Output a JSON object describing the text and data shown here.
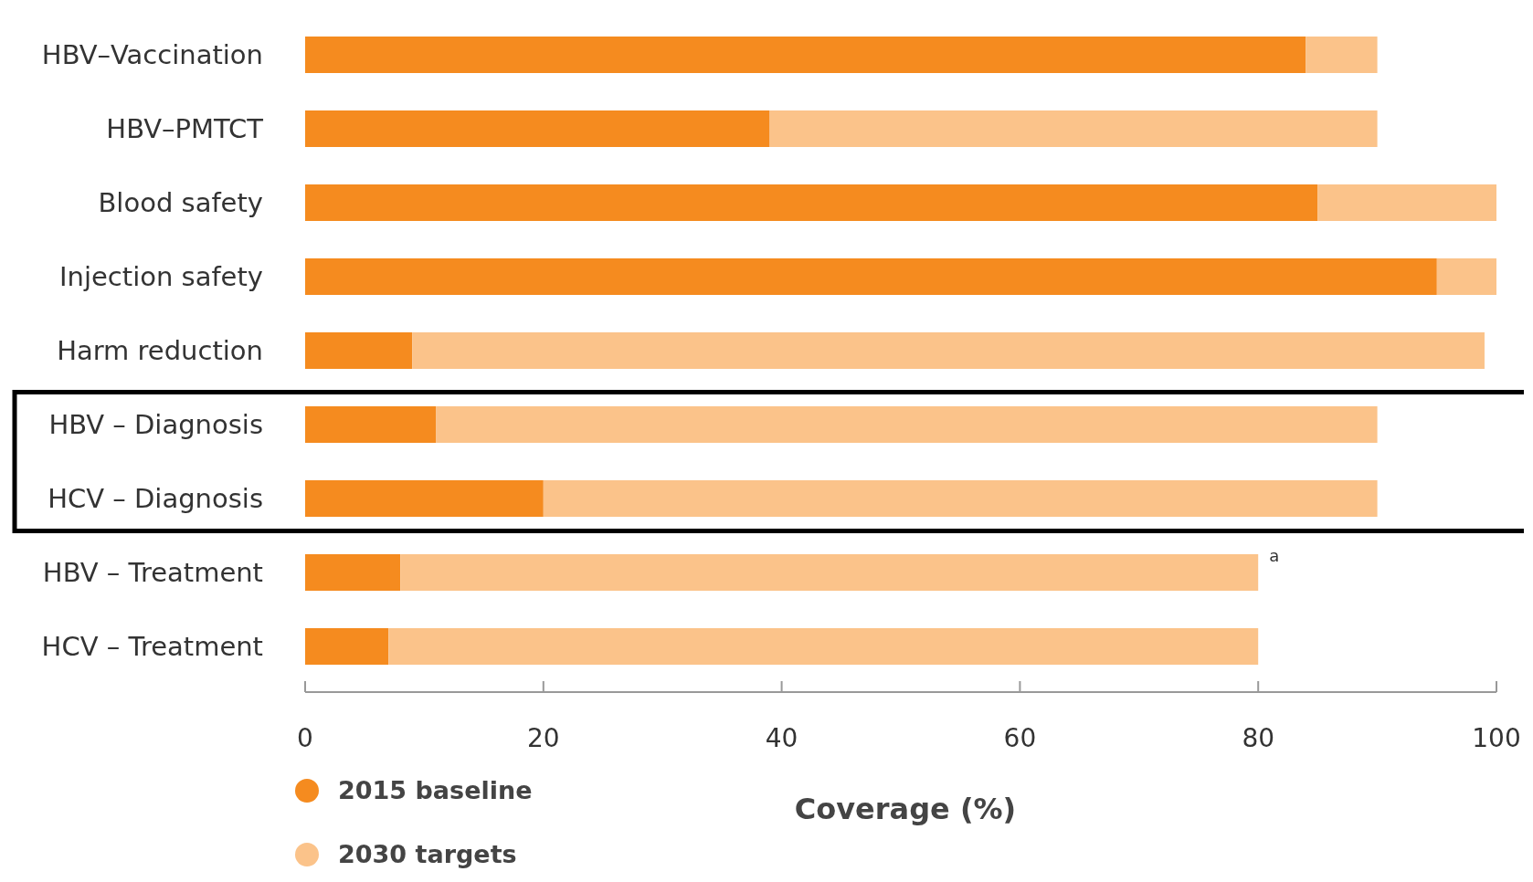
{
  "chart_data": {
    "type": "bar",
    "orientation": "horizontal",
    "stacked": true,
    "xlabel": "Coverage (%)",
    "categories": [
      "HBV–Vaccination",
      "HBV–PMTCT",
      "Blood safety",
      "Injection safety",
      "Harm reduction",
      "HBV – Diagnosis",
      "HCV – Diagnosis",
      "HBV – Treatment",
      "HCV – Treatment"
    ],
    "series": [
      {
        "name": "2015 baseline",
        "color": "#f58b1f",
        "values": [
          84,
          39,
          85,
          95,
          9,
          11,
          20,
          8,
          7
        ]
      },
      {
        "name": "2030 targets",
        "color": "#fbc38a",
        "values": [
          6,
          51,
          15,
          5,
          90,
          79,
          70,
          72,
          73
        ]
      }
    ],
    "xlim": [
      0,
      100
    ],
    "xticks": [
      0,
      20,
      40,
      60,
      80,
      100
    ],
    "grid": false,
    "legend": "bottom left",
    "annotations": [
      {
        "text": "a",
        "x": 80,
        "y": "HBV – Treatment"
      }
    ]
  }
}
